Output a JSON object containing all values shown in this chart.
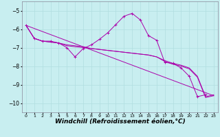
{
  "background_color": "#c8eef0",
  "line_color": "#aa00aa",
  "grid_color": "#b0dde0",
  "xlabel": "Windchill (Refroidissement éolien,°C)",
  "xlabel_fontsize": 6.5,
  "ylim": [
    -10.5,
    -4.5
  ],
  "xlim": [
    -0.5,
    23.5
  ],
  "yticks": [
    -10,
    -9,
    -8,
    -7,
    -6,
    -5
  ],
  "xticks": [
    0,
    1,
    2,
    3,
    4,
    5,
    6,
    7,
    8,
    9,
    10,
    11,
    12,
    13,
    14,
    15,
    16,
    17,
    18,
    19,
    20,
    21,
    22,
    23
  ],
  "series1_x": [
    0,
    1,
    2,
    3,
    4,
    5,
    6,
    7,
    8,
    9,
    10,
    11,
    12,
    13,
    14,
    15,
    16,
    17,
    18,
    19,
    20,
    21,
    22
  ],
  "series1_y": [
    -5.8,
    -6.5,
    -6.65,
    -6.65,
    -6.75,
    -7.0,
    -7.5,
    -7.05,
    -6.85,
    -6.55,
    -6.2,
    -5.75,
    -5.3,
    -5.15,
    -5.5,
    -6.35,
    -6.6,
    -7.8,
    -7.85,
    -8.1,
    -8.55,
    -9.65,
    -9.55
  ],
  "series2_x": [
    0,
    1,
    2,
    3,
    4,
    5,
    6,
    7,
    8,
    9,
    10,
    11,
    12,
    13,
    14,
    15,
    16,
    17,
    18,
    19,
    20,
    21,
    22,
    23
  ],
  "series2_y": [
    -5.8,
    -6.5,
    -6.65,
    -6.7,
    -6.75,
    -6.85,
    -6.9,
    -6.95,
    -7.05,
    -7.1,
    -7.15,
    -7.2,
    -7.25,
    -7.3,
    -7.35,
    -7.4,
    -7.5,
    -7.7,
    -7.85,
    -7.95,
    -8.1,
    -8.55,
    -9.65,
    -9.55
  ],
  "series3_x": [
    0,
    1,
    2,
    3,
    4,
    5,
    6,
    7,
    8,
    9,
    10,
    11,
    12,
    13,
    14,
    15,
    16,
    17,
    18,
    19,
    20,
    21,
    22,
    23
  ],
  "series3_y": [
    -5.8,
    -6.5,
    -6.65,
    -6.7,
    -6.75,
    -6.9,
    -6.95,
    -7.0,
    -7.05,
    -7.1,
    -7.15,
    -7.2,
    -7.25,
    -7.3,
    -7.35,
    -7.4,
    -7.5,
    -7.75,
    -7.9,
    -8.0,
    -8.15,
    -8.6,
    -9.7,
    -9.6
  ],
  "series4_x": [
    0,
    23
  ],
  "series4_y": [
    -5.8,
    -9.6
  ]
}
